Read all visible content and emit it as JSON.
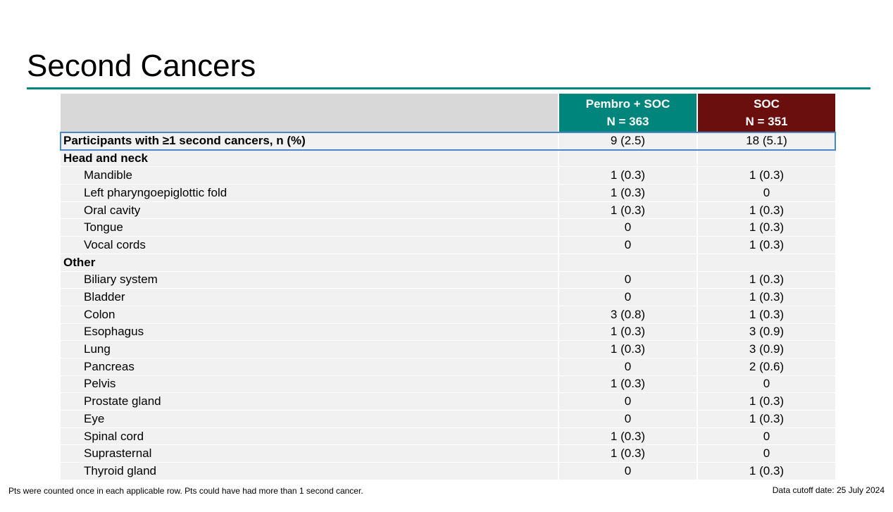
{
  "title": "Second Cancers",
  "columns": {
    "pembro": {
      "name": "Pembro + SOC",
      "n": "N = 363"
    },
    "soc": {
      "name": "SOC",
      "n": "N = 351"
    }
  },
  "rows": [
    {
      "label": "Participants with ≥1 second cancers, n (%)",
      "pembro": "9 (2.5)",
      "soc": "18 (5.1)",
      "bold": true,
      "indent": false,
      "highlight": true
    },
    {
      "label": "Head and neck",
      "pembro": "",
      "soc": "",
      "bold": true,
      "indent": false
    },
    {
      "label": "Mandible",
      "pembro": "1 (0.3)",
      "soc": "1 (0.3)",
      "bold": false,
      "indent": true
    },
    {
      "label": "Left pharyngoepiglottic fold",
      "pembro": "1 (0.3)",
      "soc": "0",
      "bold": false,
      "indent": true
    },
    {
      "label": "Oral cavity",
      "pembro": "1 (0.3)",
      "soc": "1 (0.3)",
      "bold": false,
      "indent": true
    },
    {
      "label": "Tongue",
      "pembro": "0",
      "soc": "1 (0.3)",
      "bold": false,
      "indent": true
    },
    {
      "label": "Vocal cords",
      "pembro": "0",
      "soc": "1 (0.3)",
      "bold": false,
      "indent": true
    },
    {
      "label": "Other",
      "pembro": "",
      "soc": "",
      "bold": true,
      "indent": false
    },
    {
      "label": "Biliary system",
      "pembro": "0",
      "soc": "1 (0.3)",
      "bold": false,
      "indent": true
    },
    {
      "label": "Bladder",
      "pembro": "0",
      "soc": "1 (0.3)",
      "bold": false,
      "indent": true
    },
    {
      "label": "Colon",
      "pembro": "3 (0.8)",
      "soc": "1 (0.3)",
      "bold": false,
      "indent": true
    },
    {
      "label": "Esophagus",
      "pembro": "1 (0.3)",
      "soc": "3 (0.9)",
      "bold": false,
      "indent": true
    },
    {
      "label": "Lung",
      "pembro": "1 (0.3)",
      "soc": "3 (0.9)",
      "bold": false,
      "indent": true
    },
    {
      "label": "Pancreas",
      "pembro": "0",
      "soc": "2 (0.6)",
      "bold": false,
      "indent": true
    },
    {
      "label": "Pelvis",
      "pembro": "1 (0.3)",
      "soc": "0",
      "bold": false,
      "indent": true
    },
    {
      "label": "Prostate gland",
      "pembro": "0",
      "soc": "1 (0.3)",
      "bold": false,
      "indent": true
    },
    {
      "label": "Eye",
      "pembro": "0",
      "soc": "1 (0.3)",
      "bold": false,
      "indent": true
    },
    {
      "label": "Spinal cord",
      "pembro": "1 (0.3)",
      "soc": "0",
      "bold": false,
      "indent": true
    },
    {
      "label": "Suprasternal",
      "pembro": "1 (0.3)",
      "soc": "0",
      "bold": false,
      "indent": true
    },
    {
      "label": "Thyroid gland",
      "pembro": "0",
      "soc": "1 (0.3)",
      "bold": false,
      "indent": true
    }
  ],
  "footnote": "Pts were counted once in each applicable row. Pts could have had more than 1 second cancer.",
  "cutoff": "Data cutoff date: 25 July 2024",
  "colors": {
    "accent_teal": "#00857c",
    "accent_maroon": "#6b0e0e",
    "highlight_blue": "#4a86c8"
  }
}
